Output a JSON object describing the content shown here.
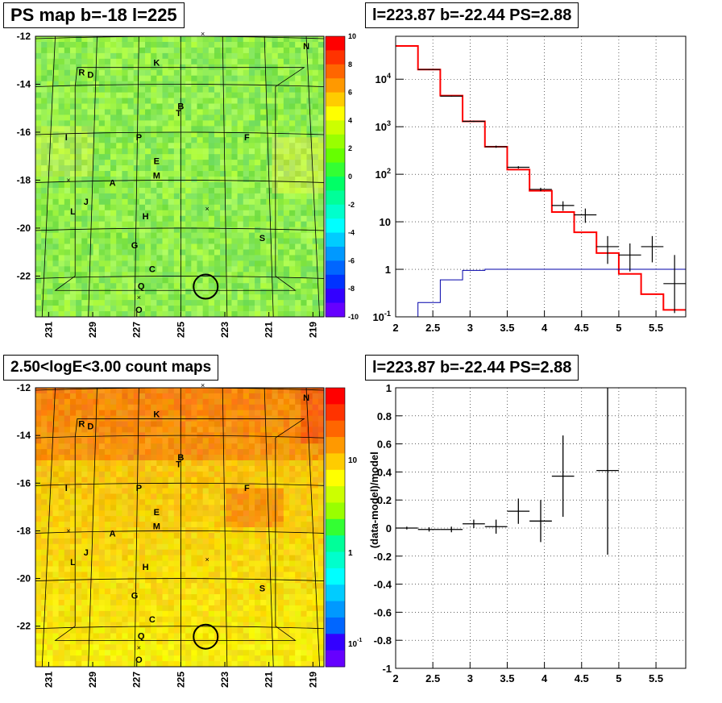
{
  "panels": {
    "ps_map": {
      "title": "PS map b=-18 l=225"
    },
    "spectrum": {
      "title": "l=223.87 b=-22.44 PS=2.88"
    },
    "count_map": {
      "title": "2.50<logE<3.00 count maps"
    },
    "residual": {
      "title": "l=223.87 b=-22.44 PS=2.88"
    }
  },
  "chart_data": [
    {
      "type": "heatmap",
      "title": "PS map b=-18 l=225",
      "xticks": [
        "231",
        "229",
        "227",
        "225",
        "223",
        "221",
        "219"
      ],
      "yticks": [
        "-12",
        "-14",
        "-16",
        "-18",
        "-20",
        "-22"
      ],
      "xlim": [
        231.6,
        218.5
      ],
      "ylim": [
        -23.7,
        -12
      ],
      "colorbar": {
        "ticks": [
          "10",
          "8",
          "6",
          "4",
          "2",
          "0",
          "-2",
          "-4",
          "-6",
          "-8",
          "-10"
        ],
        "range": [
          -10,
          10
        ]
      },
      "dominant_value": 0.5,
      "sources": [
        {
          "label": "N",
          "l": 219.3,
          "b": -12.4
        },
        {
          "label": "K",
          "l": 226.1,
          "b": -13.1
        },
        {
          "label": "R",
          "l": 229.5,
          "b": -13.5
        },
        {
          "label": "D",
          "l": 229.1,
          "b": -13.6
        },
        {
          "label": "B",
          "l": 225.0,
          "b": -14.9
        },
        {
          "label": "T",
          "l": 225.1,
          "b": -15.2
        },
        {
          "label": "I",
          "l": 230.2,
          "b": -16.2
        },
        {
          "label": "P",
          "l": 226.9,
          "b": -16.2
        },
        {
          "label": "F",
          "l": 222.0,
          "b": -16.2
        },
        {
          "label": "E",
          "l": 226.1,
          "b": -17.2
        },
        {
          "label": "M",
          "l": 226.1,
          "b": -17.8
        },
        {
          "label": "A",
          "l": 228.1,
          "b": -18.1
        },
        {
          "label": "J",
          "l": 229.3,
          "b": -18.9
        },
        {
          "label": "L",
          "l": 229.9,
          "b": -19.3
        },
        {
          "label": "H",
          "l": 226.6,
          "b": -19.5
        },
        {
          "label": "S",
          "l": 221.3,
          "b": -20.4
        },
        {
          "label": "G",
          "l": 227.1,
          "b": -20.7
        },
        {
          "label": "C",
          "l": 226.3,
          "b": -21.7
        },
        {
          "label": "Q",
          "l": 226.8,
          "b": -22.4
        },
        {
          "label": "O",
          "l": 226.9,
          "b": -23.4
        }
      ],
      "roi_center": {
        "l": 223.87,
        "b": -22.44
      }
    },
    {
      "type": "line",
      "title": "l=223.87 b=-22.44 PS=2.88",
      "xlabel": "",
      "ylabel": "",
      "xlim": [
        2.0,
        5.9
      ],
      "ylim": [
        0.1,
        80000
      ],
      "yscale": "log",
      "xticks": [
        "2",
        "2.5",
        "3",
        "3.5",
        "4",
        "4.5",
        "5",
        "5.5"
      ],
      "yticks": [
        "10⁻¹",
        "1",
        "10",
        "10²",
        "10³",
        "10⁴"
      ],
      "grid": true,
      "bin_edges": [
        2.0,
        2.3,
        2.6,
        2.9,
        3.2,
        3.5,
        3.8,
        4.1,
        4.4,
        4.7,
        5.0,
        5.3,
        5.6,
        5.9
      ],
      "series": [
        {
          "color": "#ff0000",
          "values": [
            50000,
            16000,
            4500,
            1300,
            380,
            125,
            45,
            16,
            6,
            2.2,
            0.8,
            0.3,
            0.14
          ]
        },
        {
          "color": "#0000aa",
          "values": [
            0.08,
            0.2,
            0.6,
            0.95,
            1.0,
            1.0,
            1.0,
            1.0,
            1.0,
            1.0,
            1.0,
            1.0,
            1.0
          ]
        },
        {
          "color": "#000000",
          "values": [
            16000,
            4400,
            1300,
            380,
            140,
            48,
            22,
            14,
            3,
            2,
            3,
            0.5
          ],
          "x": [
            2.45,
            2.75,
            3.05,
            3.35,
            3.65,
            3.95,
            4.25,
            4.55,
            4.85,
            5.15,
            5.45,
            5.75
          ],
          "err_low": [
            15700,
            4300,
            1260,
            360,
            132,
            44,
            17,
            9.5,
            1.3,
            0.9,
            1.4,
            0.12
          ],
          "err_high": [
            16300,
            4500,
            1340,
            400,
            148,
            52,
            27,
            19,
            5,
            3.5,
            5,
            2
          ]
        }
      ]
    },
    {
      "type": "heatmap",
      "title": "2.50<logE<3.00 count maps",
      "xticks": [
        "231",
        "229",
        "227",
        "225",
        "223",
        "221",
        "219"
      ],
      "yticks": [
        "-12",
        "-14",
        "-16",
        "-18",
        "-20",
        "-22"
      ],
      "colorbar": {
        "ticks": [
          "10",
          "1",
          "10⁻¹"
        ],
        "scale": "log"
      },
      "dominant_value": 5
    },
    {
      "type": "scatter",
      "title": "l=223.87 b=-22.44 PS=2.88",
      "ylabel": "(data-model)/model",
      "xlim": [
        2.0,
        5.9
      ],
      "ylim": [
        -1,
        1
      ],
      "xticks": [
        "2",
        "2.5",
        "3",
        "3.5",
        "4",
        "4.5",
        "5",
        "5.5"
      ],
      "yticks": [
        "1",
        "0.8",
        "0.6",
        "0.4",
        "0.2",
        "0",
        "-0.2",
        "-0.4",
        "-0.6",
        "-0.8",
        "-1"
      ],
      "grid": true,
      "points": [
        {
          "x": 2.15,
          "y": 0.0,
          "xerr": 0.15,
          "yerr": 0.01
        },
        {
          "x": 2.45,
          "y": -0.01,
          "xerr": 0.15,
          "yerr": 0.015
        },
        {
          "x": 2.75,
          "y": -0.01,
          "xerr": 0.15,
          "yerr": 0.02
        },
        {
          "x": 3.05,
          "y": 0.03,
          "xerr": 0.15,
          "yerr": 0.03
        },
        {
          "x": 3.35,
          "y": 0.01,
          "xerr": 0.15,
          "yerr": 0.05
        },
        {
          "x": 3.65,
          "y": 0.12,
          "xerr": 0.15,
          "yerr": 0.09
        },
        {
          "x": 3.95,
          "y": 0.05,
          "xerr": 0.15,
          "yerr": 0.15
        },
        {
          "x": 4.25,
          "y": 0.37,
          "xerr": 0.15,
          "yerr": 0.29
        },
        {
          "x": 4.85,
          "y": 0.41,
          "xerr": 0.15,
          "yerr": 0.6
        }
      ]
    }
  ]
}
